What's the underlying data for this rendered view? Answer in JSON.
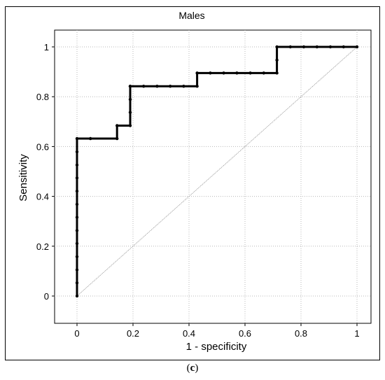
{
  "caption": {
    "open": "(",
    "letter": "c",
    "close": ")"
  },
  "chart_data": {
    "type": "line",
    "title": "Males",
    "xlabel": "1 - specificity",
    "ylabel": "Sensitivity",
    "xlim": [
      0,
      1
    ],
    "ylim": [
      0,
      1
    ],
    "xticks": [
      0,
      0.2,
      0.4,
      0.6,
      0.8,
      1
    ],
    "yticks": [
      0,
      0.2,
      0.4,
      0.6,
      0.8,
      1
    ],
    "xtick_labels": [
      "0",
      "0.2",
      "0.4",
      "0.6",
      "0.8",
      "1"
    ],
    "ytick_labels": [
      "0",
      "0.2",
      "0.4",
      "0.6",
      "0.8",
      "1"
    ],
    "grid": true,
    "series": [
      {
        "role": "roc-curve",
        "x": [
          0,
          0,
          0,
          0,
          0,
          0,
          0,
          0,
          0,
          0,
          0,
          0,
          0,
          0.048,
          0.143,
          0.143,
          0.19,
          0.19,
          0.19,
          0.19,
          0.19,
          0.238,
          0.286,
          0.333,
          0.381,
          0.429,
          0.429,
          0.476,
          0.524,
          0.571,
          0.619,
          0.667,
          0.714,
          0.714,
          0.714,
          0.762,
          0.81,
          0.857,
          0.905,
          0.952,
          1
        ],
        "y": [
          0,
          0.053,
          0.105,
          0.158,
          0.211,
          0.263,
          0.316,
          0.368,
          0.421,
          0.474,
          0.526,
          0.579,
          0.632,
          0.632,
          0.632,
          0.684,
          0.684,
          0.737,
          0.789,
          0.842,
          0.842,
          0.842,
          0.842,
          0.842,
          0.842,
          0.842,
          0.895,
          0.895,
          0.895,
          0.895,
          0.895,
          0.895,
          0.895,
          0.947,
          1.0,
          1.0,
          1.0,
          1.0,
          1.0,
          1.0,
          1.0
        ],
        "color": "#000000"
      },
      {
        "role": "reference-diagonal",
        "x": [
          0,
          1
        ],
        "y": [
          0,
          1
        ],
        "color": "#9a9a9a"
      }
    ]
  }
}
